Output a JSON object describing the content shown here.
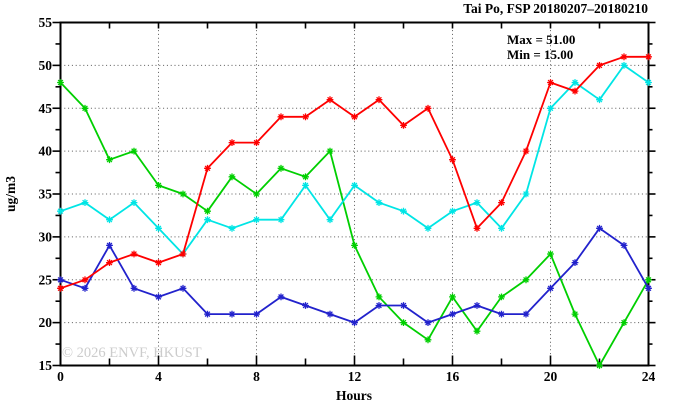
{
  "annotations": {
    "max": "Max = 51.00",
    "min": "Min = 15.00"
  },
  "watermark": {
    "text": "© 2026 ENVF, HKUST"
  },
  "chart_data": {
    "type": "line",
    "title": "Tai Po, FSP 20180207–20180210",
    "xlabel": "Hours",
    "ylabel": "ug/m3",
    "xlim": [
      0,
      24
    ],
    "ylim": [
      15,
      55
    ],
    "x_ticks": [
      0,
      4,
      8,
      12,
      16,
      20,
      24
    ],
    "y_ticks": [
      15,
      20,
      25,
      30,
      35,
      40,
      45,
      50,
      55
    ],
    "x_minor_step": 2,
    "y_minor_step": 2.5,
    "grid": true,
    "legend": false,
    "x": [
      0,
      1,
      2,
      3,
      4,
      5,
      6,
      7,
      8,
      9,
      10,
      11,
      12,
      13,
      14,
      15,
      16,
      17,
      18,
      19,
      20,
      21,
      22,
      23,
      24
    ],
    "series": [
      {
        "name": "green",
        "color": "#00cf00",
        "values": [
          48,
          45,
          39,
          40,
          36,
          35,
          33,
          37,
          35,
          38,
          37,
          40,
          29,
          23,
          20,
          18,
          23,
          19,
          23,
          25,
          28,
          21,
          15,
          20,
          25
        ]
      },
      {
        "name": "cyan",
        "color": "#00e5e5",
        "values": [
          33,
          34,
          32,
          34,
          31,
          28,
          32,
          31,
          32,
          32,
          36,
          32,
          36,
          34,
          33,
          31,
          33,
          34,
          31,
          35,
          45,
          48,
          46,
          50,
          48
        ]
      },
      {
        "name": "blue",
        "color": "#2222cc",
        "values": [
          25,
          24,
          29,
          24,
          23,
          24,
          21,
          21,
          21,
          23,
          22,
          21,
          20,
          22,
          22,
          20,
          21,
          22,
          21,
          21,
          24,
          27,
          31,
          29,
          24
        ]
      },
      {
        "name": "red",
        "color": "#fe0000",
        "values": [
          24,
          25,
          27,
          28,
          27,
          28,
          38,
          41,
          41,
          44,
          44,
          46,
          44,
          46,
          43,
          45,
          39,
          31,
          34,
          40,
          48,
          47,
          50,
          51,
          51
        ]
      }
    ],
    "stats": {
      "max": 51.0,
      "min": 15.0
    }
  }
}
